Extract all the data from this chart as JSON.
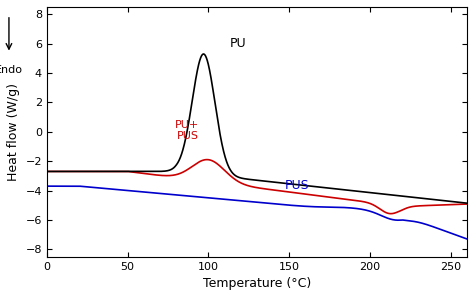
{
  "title": "",
  "xlabel": "Temperature (°C)",
  "ylabel": "Heat flow (W/g)",
  "xlim": [
    0,
    260
  ],
  "ylim": [
    -8.5,
    8.5
  ],
  "xticks": [
    0,
    50,
    100,
    150,
    200,
    250
  ],
  "yticks": [
    -8,
    -6,
    -4,
    -2,
    0,
    2,
    4,
    6,
    8
  ],
  "colors": {
    "PU": "#000000",
    "PU_PUS": "#cc0000",
    "PUS": "#0000cc"
  },
  "labels": {
    "PU": "PU",
    "PU_PUS": "PU+\nPUS",
    "PUS": "PUS"
  },
  "endo_label": "Endo",
  "background_color": "#ffffff",
  "grid": false
}
